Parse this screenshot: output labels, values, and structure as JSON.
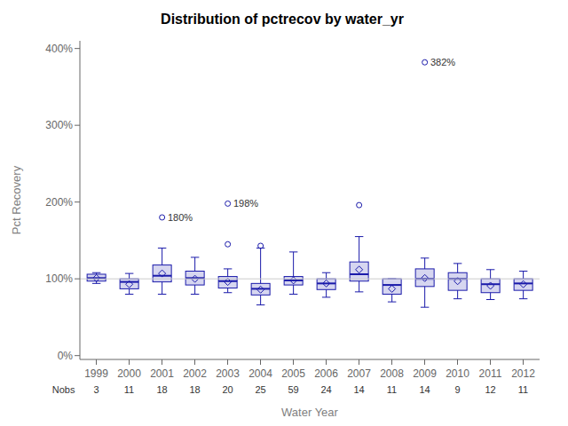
{
  "chart_data": {
    "type": "box",
    "title": "Distribution of pctrecov by water_yr",
    "xlabel": "Water Year",
    "ylabel": "Pct Recovery",
    "categories": [
      "1999",
      "2000",
      "2001",
      "2002",
      "2003",
      "2004",
      "2005",
      "2006",
      "2007",
      "2008",
      "2009",
      "2010",
      "2011",
      "2012"
    ],
    "q1": [
      97,
      87,
      96,
      92,
      88,
      79,
      92,
      86,
      97,
      80,
      90,
      85,
      82,
      85
    ],
    "median": [
      101,
      96,
      104,
      101,
      97,
      87,
      98,
      94,
      106,
      92,
      100,
      100,
      93,
      94
    ],
    "q3": [
      106,
      100,
      118,
      110,
      103,
      94,
      103,
      100,
      122,
      100,
      113,
      108,
      100,
      100
    ],
    "whislo": [
      94,
      80,
      80,
      80,
      82,
      66,
      80,
      76,
      83,
      70,
      63,
      74,
      73,
      74
    ],
    "whishi": [
      108,
      107,
      140,
      128,
      113,
      140,
      135,
      108,
      155,
      100,
      127,
      120,
      112,
      110
    ],
    "mean": [
      101,
      93,
      107,
      100,
      96,
      86,
      98,
      94,
      112,
      87,
      101,
      97,
      91,
      93
    ],
    "outliers": [
      [],
      [],
      [
        180
      ],
      [],
      [
        145,
        198
      ],
      [
        143
      ],
      [],
      [],
      [
        196
      ],
      [],
      [
        382
      ],
      [],
      [],
      []
    ],
    "outlier_labels": [
      [],
      [],
      [
        {
          "value": 180,
          "label": "180%"
        }
      ],
      [],
      [
        {
          "value": 198,
          "label": "198%"
        }
      ],
      [],
      [],
      [],
      [],
      [],
      [
        {
          "value": 382,
          "label": "382%"
        }
      ],
      [],
      [],
      []
    ],
    "nobs_label": "Nobs",
    "nobs": [
      3,
      11,
      18,
      18,
      20,
      25,
      59,
      24,
      14,
      11,
      14,
      9,
      12,
      11
    ],
    "ref_line": 100,
    "ylim": [
      -5,
      410
    ],
    "yticks": [
      {
        "value": 0,
        "label": "0%"
      },
      {
        "value": 100,
        "label": "100%"
      },
      {
        "value": 200,
        "label": "200%"
      },
      {
        "value": 300,
        "label": "300%"
      },
      {
        "value": 400,
        "label": "400%"
      }
    ],
    "grid": false,
    "color": "#1a1aaa"
  }
}
